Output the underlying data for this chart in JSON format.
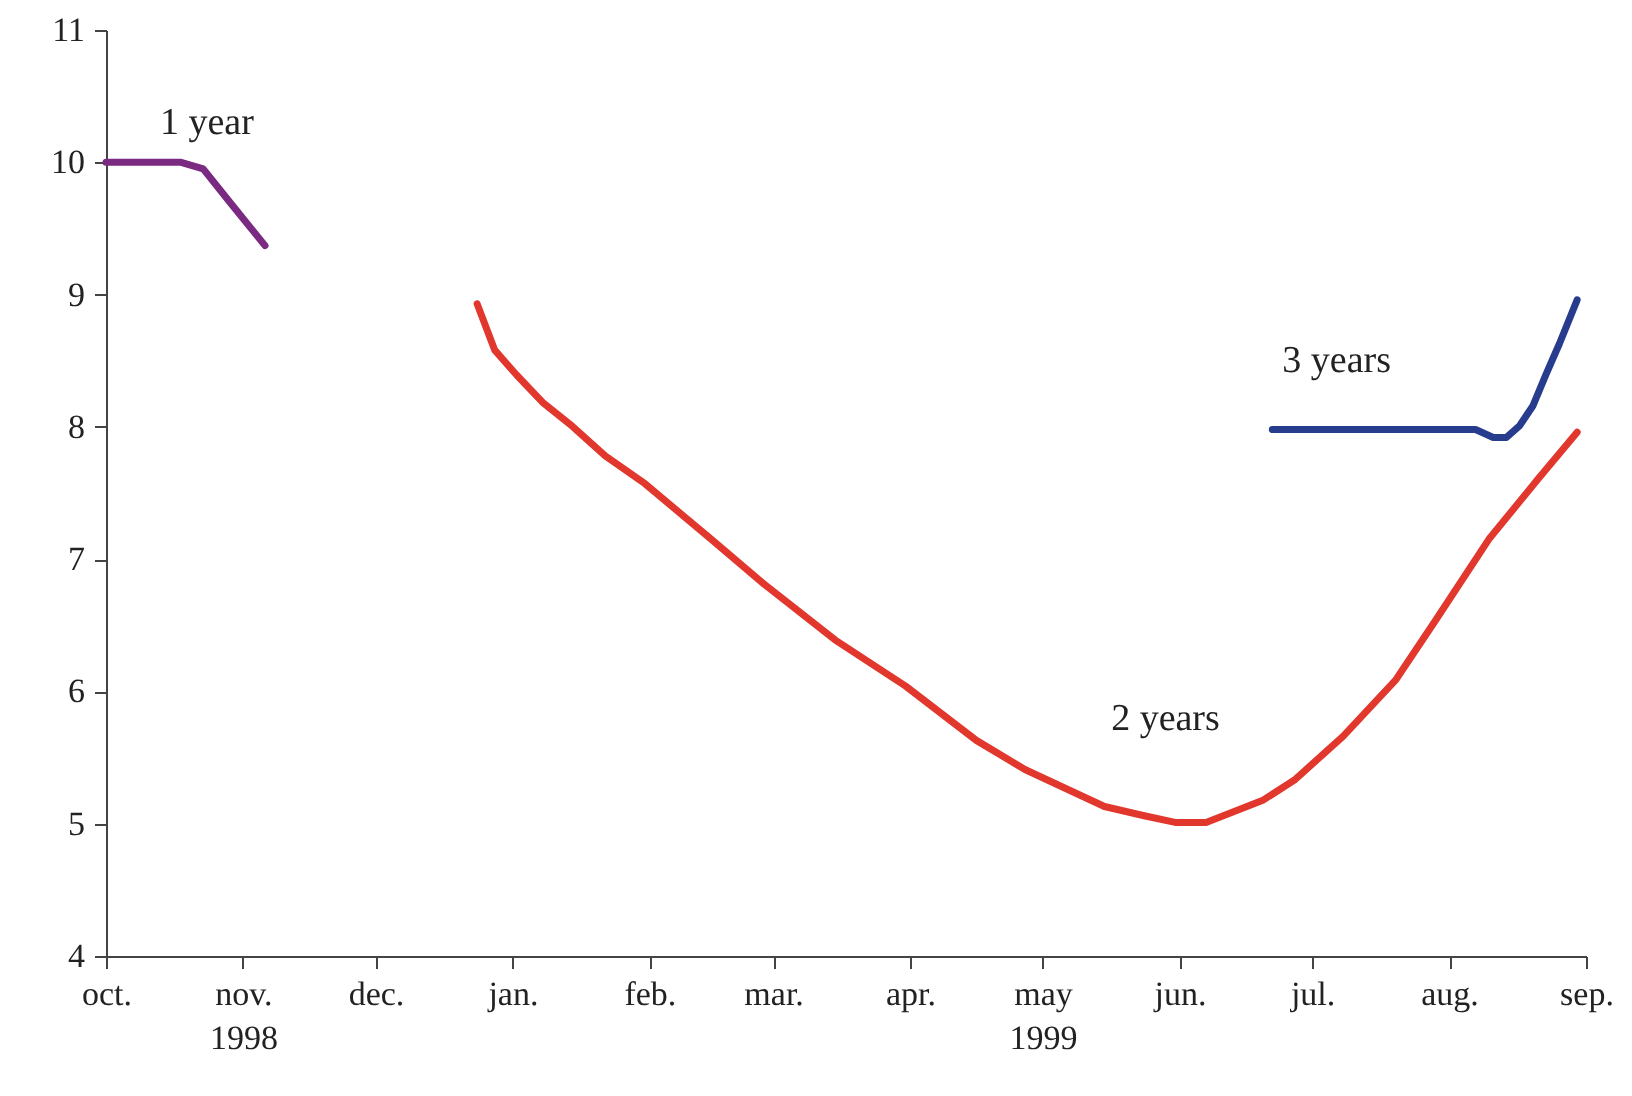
{
  "chart_data": {
    "type": "line",
    "line_style": "solid",
    "grid": false,
    "xlim": [
      "1998-10-01",
      "1999-09-01"
    ],
    "ylim": [
      4,
      11
    ],
    "xticks": [
      {
        "value": "1998-10-01",
        "label": "oct."
      },
      {
        "value": "1998-11-01",
        "label": "nov. 1998"
      },
      {
        "value": "1998-12-01",
        "label": "dec."
      },
      {
        "value": "1999-01-01",
        "label": "jan."
      },
      {
        "value": "1999-02-01",
        "label": "feb."
      },
      {
        "value": "1999-03-01",
        "label": "mar."
      },
      {
        "value": "1999-04-01",
        "label": "apr."
      },
      {
        "value": "1999-05-01",
        "label": "may 1999"
      },
      {
        "value": "1999-06-01",
        "label": "jun."
      },
      {
        "value": "1999-07-01",
        "label": "jul."
      },
      {
        "value": "1999-08-01",
        "label": "aug."
      },
      {
        "value": "1999-09-01",
        "label": "sep."
      }
    ],
    "yticks": [
      4,
      5,
      6,
      7,
      8,
      9,
      10,
      11
    ],
    "series": [
      {
        "name": "1 year",
        "color": "#7a2a80",
        "x": [
          "1998-10-01",
          "1998-10-18",
          "1998-10-23",
          "1998-10-29",
          "1998-11-06"
        ],
        "values": [
          10.0,
          10.0,
          9.95,
          9.7,
          9.37
        ]
      },
      {
        "name": "2 years",
        "color": "#e2372d",
        "x": [
          "1998-12-24",
          "1998-12-28",
          "1999-01-02",
          "1999-01-08",
          "1999-01-14",
          "1999-01-22",
          "1999-01-31",
          "1999-02-15",
          "1999-02-27",
          "1999-03-15",
          "1999-03-31",
          "1999-04-16",
          "1999-04-27",
          "1999-05-15",
          "1999-05-24",
          "1999-05-31",
          "1999-06-07",
          "1999-06-20",
          "1999-06-27",
          "1999-07-08",
          "1999-07-20",
          "1999-07-29",
          "1999-08-10",
          "1999-08-21",
          "1999-08-30"
        ],
        "values": [
          8.93,
          8.58,
          8.39,
          8.18,
          8.02,
          7.78,
          7.57,
          7.15,
          6.81,
          6.39,
          6.04,
          5.63,
          5.41,
          5.13,
          5.06,
          5.01,
          5.01,
          5.18,
          5.33,
          5.66,
          6.09,
          6.54,
          7.15,
          7.6,
          7.96
        ]
      },
      {
        "name": "3 years",
        "color": "#283c8e",
        "x": [
          "1999-06-22",
          "1999-08-07",
          "1999-08-11",
          "1999-08-14",
          "1999-08-17",
          "1999-08-20",
          "1999-08-23",
          "1999-08-26",
          "1999-08-30"
        ],
        "values": [
          7.98,
          7.98,
          7.92,
          7.92,
          8.01,
          8.16,
          8.4,
          8.63,
          8.96
        ]
      }
    ]
  }
}
